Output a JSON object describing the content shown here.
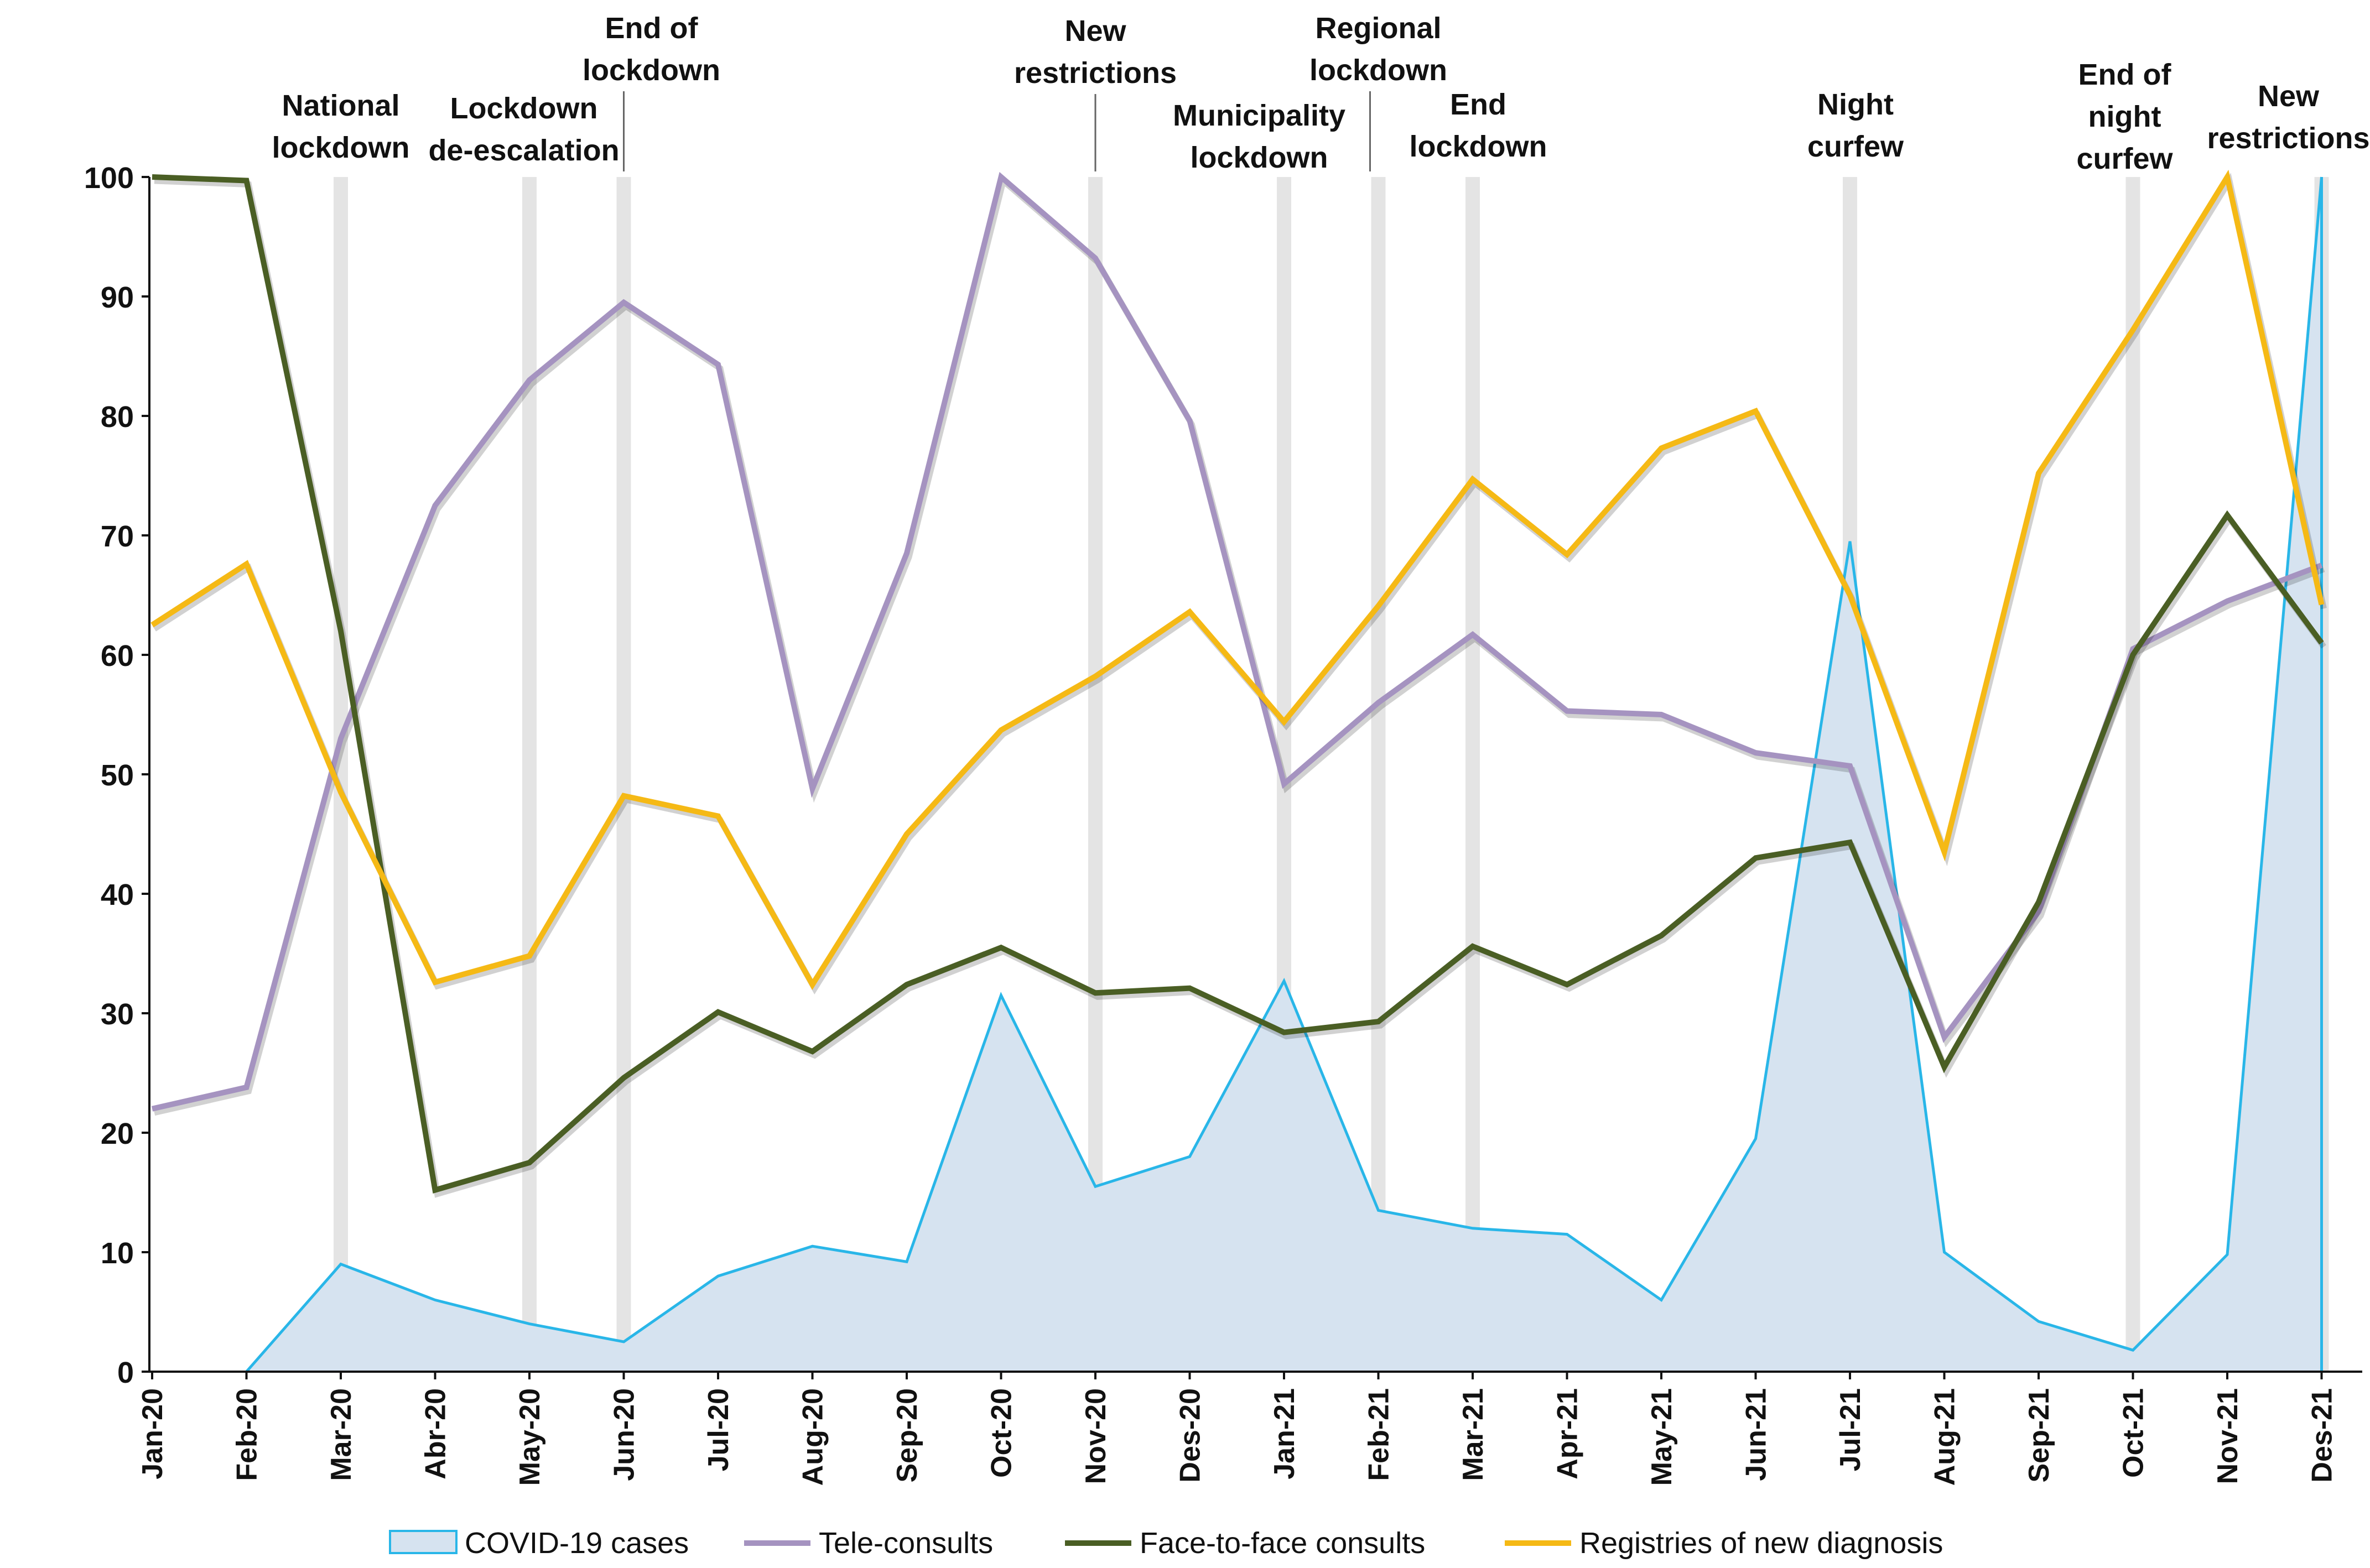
{
  "chart_data": {
    "type": "line",
    "title": "",
    "xlabel": "",
    "ylabel": "",
    "ylim": [
      0,
      100
    ],
    "yticks": [
      "0",
      "10",
      "20",
      "30",
      "40",
      "50",
      "60",
      "70",
      "80",
      "90",
      "100"
    ],
    "categories": [
      "Jan-20",
      "Feb-20",
      "Mar-20",
      "Abr-20",
      "May-20",
      "Jun-20",
      "Jul-20",
      "Aug-20",
      "Sep-20",
      "Oct-20",
      "Nov-20",
      "Des-20",
      "Jan-21",
      "Feb-21",
      "Mar-21",
      "Apr-21",
      "May-21",
      "Jun-21",
      "Jul-21",
      "Aug-21",
      "Sep-21",
      "Oct-21",
      "Nov-21",
      "Des-21"
    ],
    "series": [
      {
        "name": "COVID-19 cases",
        "style": "area",
        "color": "#29b6e8",
        "fill": "#d6e3f0",
        "values": [
          null,
          0,
          9,
          6,
          4,
          2.5,
          8,
          10.5,
          9.2,
          31.5,
          15.5,
          18,
          32.7,
          13.5,
          12,
          11.5,
          6,
          19.5,
          69.5,
          10,
          4.2,
          1.8,
          9.8,
          100
        ]
      },
      {
        "name": "Tele-consults",
        "style": "line",
        "color": "#a593c0",
        "values": [
          22,
          23.8,
          53,
          72.5,
          83,
          89.5,
          84.3,
          48.8,
          68.5,
          100,
          93.2,
          79.6,
          49.2,
          56,
          61.7,
          55.3,
          55,
          51.8,
          50.7,
          28,
          38.5,
          60.5,
          64.5,
          67.5
        ]
      },
      {
        "name": "Face-to-face consults",
        "style": "line",
        "color": "#4a5e24",
        "values": [
          100,
          99.7,
          62,
          15.2,
          17.5,
          24.6,
          30.1,
          26.8,
          32.4,
          35.5,
          31.7,
          32.1,
          28.4,
          29.3,
          35.6,
          32.4,
          36.5,
          43,
          44.3,
          25.5,
          39.3,
          60,
          71.7,
          61
        ]
      },
      {
        "name": "Registries of new diagnosis",
        "style": "line",
        "color": "#f5b915",
        "values": [
          62.5,
          67.6,
          48.5,
          32.6,
          34.8,
          48.2,
          46.5,
          32.4,
          45,
          53.7,
          58.2,
          63.6,
          54.4,
          64.1,
          74.7,
          68.4,
          77.3,
          80.4,
          65,
          43.5,
          75.2,
          87.2,
          100,
          64.2
        ]
      }
    ],
    "events": [
      {
        "month": 2,
        "lines": [
          "National",
          "lockdown"
        ],
        "leader": false
      },
      {
        "month": 4,
        "lines": [
          "Lockdown",
          "de-escalation"
        ],
        "leader": false
      },
      {
        "month": 5,
        "lines": [
          "End of",
          "lockdown"
        ],
        "leader": true
      },
      {
        "month": 10,
        "lines": [
          "New",
          "restrictions"
        ],
        "leader": true
      },
      {
        "month": 12,
        "lines": [
          "Municipality",
          "lockdown"
        ],
        "leader": false
      },
      {
        "month": 13,
        "lines": [
          "Regional",
          "lockdown"
        ],
        "leader": true
      },
      {
        "month": 14,
        "lines": [
          "End",
          "lockdown"
        ],
        "leader": false
      },
      {
        "month": 18,
        "lines": [
          "Night",
          "curfew"
        ],
        "leader": false
      },
      {
        "month": 21,
        "lines": [
          "End of",
          "night",
          "curfew"
        ],
        "leader": false
      },
      {
        "month": 23,
        "lines": [
          "New",
          "restrictions"
        ],
        "leader": false
      }
    ],
    "legend": {
      "position": "bottom",
      "entries": [
        "COVID-19 cases",
        "Tele-consults",
        "Face-to-face consults",
        "Registries of new diagnosis"
      ]
    }
  }
}
